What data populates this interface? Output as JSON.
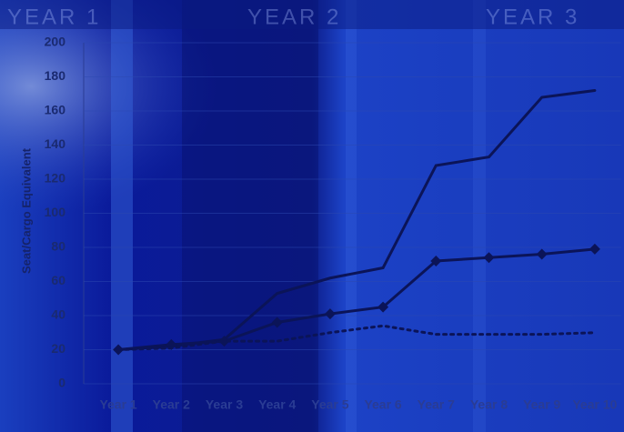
{
  "banner": [
    "YEAR 1",
    "YEAR 2",
    "YEAR 3"
  ],
  "chart_data": {
    "type": "line",
    "y_label": "Seat/Cargo Equivalent",
    "categories": [
      "Year 1",
      "Year 2",
      "Year 3",
      "Year 4",
      "Year 5",
      "Year 6",
      "Year 7",
      "Year 8",
      "Year 9",
      "Year 10"
    ],
    "series": [
      {
        "color": "#0b1458",
        "style": "solid",
        "marker": "none",
        "values": [
          20,
          22,
          26,
          53,
          62,
          68,
          128,
          133,
          168,
          172
        ]
      },
      {
        "color": "#0b1458",
        "style": "solid",
        "marker": "diamond",
        "values": [
          20,
          23,
          25,
          36,
          41,
          45,
          72,
          74,
          76,
          79
        ]
      },
      {
        "color": "#0b1458",
        "style": "dotted",
        "marker": "none",
        "values": [
          20,
          21,
          25,
          25,
          30,
          34,
          29,
          29,
          29,
          30
        ]
      }
    ],
    "ylim": [
      0,
      200
    ],
    "yticks": [
      0,
      20,
      40,
      60,
      80,
      100,
      120,
      140,
      160,
      180,
      200
    ],
    "grid": true
  }
}
